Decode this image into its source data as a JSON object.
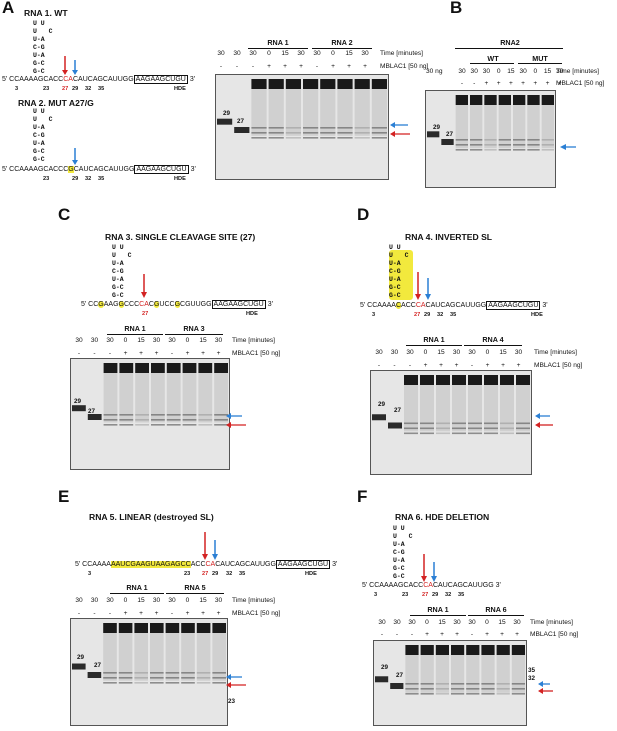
{
  "colors": {
    "red": "#d32222",
    "blue": "#2b7fd4",
    "highlight": "#f2e93d"
  },
  "panels": [
    {
      "id": "A",
      "letter": "A",
      "title": "RNA 1. WT",
      "title2": "RNA 2. MUT A27/G",
      "seq1": {
        "pre": "5' CCAAAAG",
        "mid": "CACC",
        "red": "CA",
        "post": "CAUCAGCAUUGG",
        "box": "AAGAAGCUGU",
        "end": "3'"
      },
      "seq2": {
        "pre": "5' CCAAAAG",
        "mid": "CACCC",
        "red": "G",
        "post": "CAUCAGCAUUGG",
        "box": "AAGAAGCUGU",
        "end": "3'"
      },
      "nums": [
        "3",
        "23",
        "27",
        "29",
        "32",
        "35",
        "HDE"
      ],
      "loop": "U U\nU   C\nU-A\nC-G\nU-A\nG-C\nG-C",
      "headers": {
        "times": [
          "30",
          "30",
          "30",
          "0",
          "15",
          "30",
          "30",
          "0",
          "15",
          "30"
        ],
        "enzyme": [
          "-",
          "-",
          "-",
          "+",
          "+",
          "+",
          "-",
          "+",
          "+",
          "+"
        ],
        "time_label": "Time [minutes]",
        "enzyme_label": "MBLAC1 [50 ng]",
        "groups": [
          "RNA 1",
          "RNA 2"
        ]
      },
      "markers": [
        "29",
        "27"
      ]
    },
    {
      "id": "B",
      "letter": "B",
      "group_top": "RNA2",
      "headers": {
        "times": [
          "30",
          "30",
          "30",
          "0",
          "15",
          "30",
          "0",
          "15",
          "30"
        ],
        "enzyme": [
          "-",
          "-",
          "+",
          "+",
          "+",
          "+",
          "+",
          "+",
          "+"
        ],
        "time_label": "Time [minutes]",
        "enzyme_label": "MBLAC1 [50 ng]",
        "groups": [
          "WT",
          "MUT"
        ],
        "conc_label": "30 ng"
      },
      "markers": [
        "29",
        "27"
      ]
    },
    {
      "id": "C",
      "letter": "C",
      "title": "RNA 3. SINGLE CLEAVAGE SITE (27)",
      "seq": {
        "pre": "5' CC",
        "a": "G",
        "b": "AAG",
        "c": "G",
        "d": "CCC",
        "red": "CA",
        "e": "C",
        "f": "G",
        "g": "UCC",
        "h": "G",
        "i": "CGUUGG",
        "box": "AAGAAGCUGU",
        "end": "3'"
      },
      "nums": [
        "27",
        "HDE"
      ],
      "headers": {
        "times": [
          "30",
          "30",
          "30",
          "0",
          "15",
          "30",
          "30",
          "0",
          "15",
          "30"
        ],
        "enzyme": [
          "-",
          "-",
          "-",
          "+",
          "+",
          "+",
          "-",
          "+",
          "+",
          "+"
        ],
        "time_label": "Time [minutes]",
        "enzyme_label": "MBLAC1 [50 ng]",
        "groups": [
          "RNA 1",
          "RNA 3"
        ]
      },
      "markers": [
        "29",
        "27"
      ]
    },
    {
      "id": "D",
      "letter": "D",
      "title": "RNA 4. INVERTED SL",
      "seq": {
        "pre": "5' CCAAAA",
        "yl": "C",
        "mid": "ACC",
        "red": "CA",
        "post": "CAUCAGCAUUGG",
        "box": "AAGAAGCUGU",
        "end": "3'"
      },
      "nums": [
        "3",
        "27",
        "29",
        "32",
        "35",
        "HDE"
      ],
      "headers": {
        "times": [
          "30",
          "30",
          "30",
          "0",
          "15",
          "30",
          "30",
          "0",
          "15",
          "30"
        ],
        "enzyme": [
          "-",
          "-",
          "-",
          "+",
          "+",
          "+",
          "-",
          "+",
          "+",
          "+"
        ],
        "time_label": "Time [minutes]",
        "enzyme_label": "MBLAC1 [50 ng]",
        "groups": [
          "RNA 1",
          "RNA 4"
        ]
      },
      "markers": [
        "29",
        "27"
      ]
    },
    {
      "id": "E",
      "letter": "E",
      "title": "RNA 5. LINEAR (destroyed SL)",
      "seq": {
        "pre": "5' CCAAAA",
        "hl": "AAUCGAAGUAAGAGCC",
        "mid": "ACC",
        "red": "CA",
        "post": "CAUCAGCAUUGG",
        "box": "AAGAAGCUGU",
        "end": "3'"
      },
      "nums": [
        "3",
        "23",
        "27",
        "29",
        "32",
        "35",
        "HDE"
      ],
      "headers": {
        "times": [
          "30",
          "30",
          "30",
          "0",
          "15",
          "30",
          "30",
          "0",
          "15",
          "30"
        ],
        "enzyme": [
          "-",
          "-",
          "-",
          "+",
          "+",
          "+",
          "-",
          "+",
          "+",
          "+"
        ],
        "time_label": "Time [minutes]",
        "enzyme_label": "MBLAC1 [50 ng]",
        "groups": [
          "RNA 1",
          "RNA 5"
        ]
      },
      "markers": [
        "29",
        "27"
      ],
      "side": [
        "23"
      ]
    },
    {
      "id": "F",
      "letter": "F",
      "title": "RNA 6. HDE DELETION",
      "seq": {
        "pre": "5' CCAAAAG",
        "mid": "CACC",
        "red": "CA",
        "post": "CAUCAGCAUUGG",
        "end": "3'"
      },
      "nums": [
        "3",
        "23",
        "27",
        "29",
        "32",
        "35"
      ],
      "headers": {
        "times": [
          "30",
          "30",
          "30",
          "0",
          "15",
          "30",
          "30",
          "0",
          "15",
          "30"
        ],
        "enzyme": [
          "-",
          "-",
          "-",
          "+",
          "+",
          "+",
          "-",
          "+",
          "+",
          "+"
        ],
        "time_label": "Time [minutes]",
        "enzyme_label": "MBLAC1 [50 ng]",
        "groups": [
          "RNA 1",
          "RNA 6"
        ]
      },
      "markers": [
        "29",
        "27"
      ],
      "side": [
        "35",
        "32"
      ]
    }
  ]
}
